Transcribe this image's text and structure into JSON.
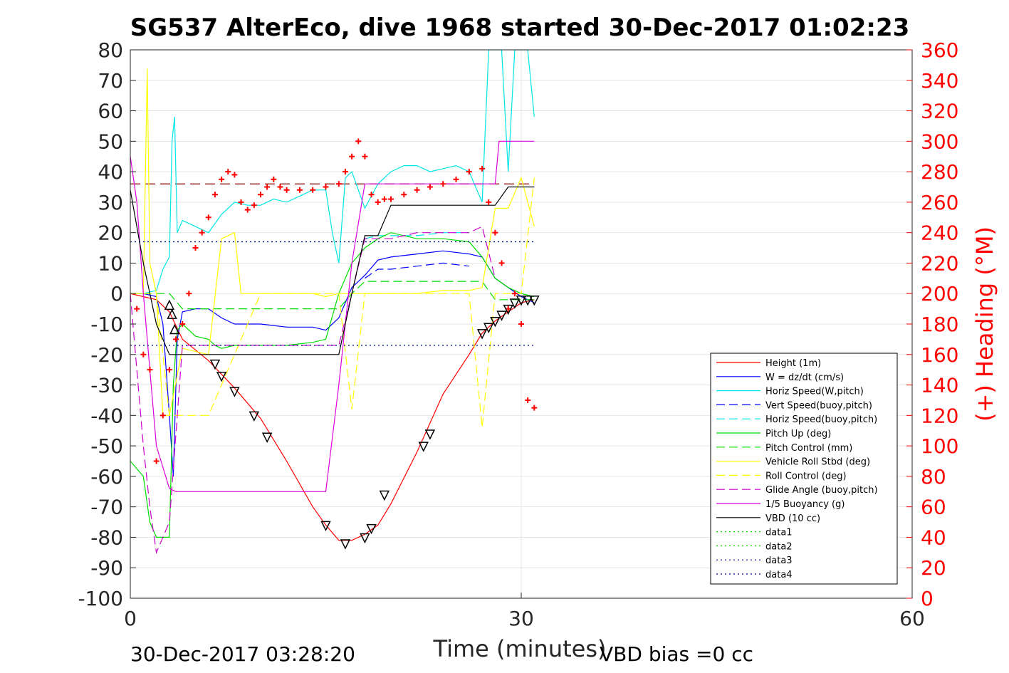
{
  "chart_data": {
    "type": "line",
    "title": "SG537 AlterEco, dive 1968 started 30-Dec-2017 01:02:23",
    "xlabel": "Time (minutes)",
    "ylabel": "",
    "ylabel_right": "(+) Heading (°M)",
    "xlim": [
      0,
      60
    ],
    "ylim": [
      -100,
      80
    ],
    "ylim_right": [
      0,
      360
    ],
    "xticks": [
      "0",
      "30",
      "60"
    ],
    "yticks": [
      "80",
      "70",
      "60",
      "50",
      "40",
      "30",
      "20",
      "10",
      "0",
      "-10",
      "-20",
      "-30",
      "-40",
      "-50",
      "-60",
      "-70",
      "-80",
      "-90",
      "-100"
    ],
    "yticks_right": [
      "360",
      "340",
      "320",
      "300",
      "280",
      "260",
      "240",
      "220",
      "200",
      "180",
      "160",
      "140",
      "120",
      "100",
      "80",
      "60",
      "40",
      "20",
      "0"
    ],
    "grid": true,
    "legend_position": "bottom-right",
    "footer_left": "30-Dec-2017 03:28:20",
    "footer_right": "VBD bias =0 cc",
    "series": [
      {
        "name": "Height (1m)",
        "color": "#ff0000",
        "style": "solid",
        "x": [
          0,
          1,
          2,
          3,
          4,
          6,
          8,
          10,
          12,
          14,
          15,
          16,
          17,
          18,
          19,
          20,
          22,
          24,
          26,
          27,
          28,
          29,
          30,
          31
        ],
        "y": [
          0,
          -1,
          -2,
          -6,
          -15,
          -22,
          -31,
          -41,
          -55,
          -70,
          -76,
          -81,
          -81,
          -79,
          -76,
          -69,
          -52,
          -33,
          -20,
          -13,
          -9,
          -6,
          -3,
          -2
        ]
      },
      {
        "name": "W = dz/dt (cm/s)",
        "color": "#0000ff",
        "style": "solid",
        "x": [
          0,
          1,
          2,
          2.5,
          3,
          3.3,
          3.6,
          4,
          5,
          6,
          7,
          8,
          10,
          12,
          14,
          15,
          16,
          17,
          18,
          19,
          20,
          22,
          24,
          26,
          27,
          28,
          29,
          30,
          31
        ],
        "y": [
          0,
          0,
          -1,
          -10,
          -40,
          -60,
          -15,
          -6,
          -5,
          -5,
          -8,
          -10,
          -10,
          -11,
          -11,
          -12,
          -8,
          2,
          6,
          11,
          12,
          13,
          14,
          13,
          12,
          5,
          2,
          -1,
          -3
        ]
      },
      {
        "name": "Horiz Speed(W,pitch)",
        "color": "#00e5e5",
        "style": "solid",
        "x": [
          0,
          1,
          2,
          2.5,
          3,
          3.2,
          3.4,
          3.6,
          4,
          5,
          6,
          7,
          8,
          9,
          10,
          11,
          12,
          13,
          14,
          15,
          15.5,
          16,
          16.5,
          17,
          18,
          19,
          20,
          21,
          22,
          23,
          24,
          25,
          26,
          27,
          27.5,
          28,
          28.5,
          29,
          29.5,
          30,
          30.5,
          31
        ],
        "y": [
          0,
          0,
          1,
          8,
          12,
          50,
          58,
          20,
          24,
          22,
          20,
          26,
          30,
          29,
          29,
          31,
          30,
          32,
          34,
          34,
          20,
          10,
          38,
          40,
          28,
          36,
          40,
          42,
          42,
          40,
          41,
          42,
          40,
          30,
          80,
          80,
          80,
          40,
          80,
          80,
          80,
          58
        ]
      },
      {
        "name": "Vert Speed(buoy,pitch)",
        "color": "#0000ff",
        "style": "dash",
        "x": [
          18,
          19,
          20,
          22,
          24,
          26
        ],
        "y": [
          5,
          8,
          8,
          9,
          10,
          9
        ]
      },
      {
        "name": "Horiz Speed(buoy,pitch)",
        "color": "#00e5e5",
        "style": "dash",
        "x": [
          18,
          19,
          20,
          22,
          24,
          26
        ],
        "y": [
          18,
          19,
          19,
          19,
          20,
          20
        ]
      },
      {
        "name": "Pitch Up (deg)",
        "color": "#00dd00",
        "style": "solid",
        "x": [
          0,
          1,
          1.5,
          2,
          2.5,
          3,
          3.3,
          3.6,
          4,
          5,
          6,
          6.5,
          7,
          8,
          10,
          12,
          14,
          15,
          16,
          17,
          18,
          19,
          20,
          22,
          24,
          26,
          27,
          28,
          29,
          30,
          31
        ],
        "y": [
          -55,
          -60,
          -75,
          -80,
          -80,
          -80,
          -30,
          -12,
          -10,
          -14,
          -15,
          -17,
          -18,
          -17,
          -17,
          -17,
          -16,
          -15,
          0,
          10,
          15,
          18,
          20,
          18,
          18,
          17,
          12,
          5,
          2,
          0,
          -1
        ]
      },
      {
        "name": "Pitch Control (mm)",
        "color": "#00dd00",
        "style": "dash",
        "x": [
          0,
          3,
          4,
          16,
          17,
          18,
          27,
          28,
          31
        ],
        "y": [
          0,
          0,
          -5,
          -5,
          0,
          4,
          4,
          -2,
          -2
        ]
      },
      {
        "name": "Vehicle Roll Stbd (deg)",
        "color": "#ffff00",
        "style": "solid",
        "x": [
          0,
          1,
          1.3,
          1.5,
          2,
          2.5,
          3,
          4,
          6,
          7,
          8,
          8.5,
          9,
          10,
          12,
          14,
          15,
          16,
          18,
          20,
          22,
          24,
          26,
          27,
          28,
          29,
          30,
          31
        ],
        "y": [
          0,
          0,
          74,
          10,
          0,
          -40,
          -40,
          -18,
          -20,
          18,
          20,
          0,
          0,
          0,
          0,
          0,
          -1,
          0,
          0,
          0,
          0,
          1,
          1,
          2,
          28,
          28,
          38,
          22
        ]
      },
      {
        "name": "Roll Control (deg)",
        "color": "#ffff00",
        "style": "dash",
        "x": [
          0,
          2,
          3,
          4,
          6,
          10,
          16,
          17,
          18,
          19,
          26,
          27,
          28,
          30,
          31
        ],
        "y": [
          0,
          0,
          -40,
          -40,
          -40,
          0,
          0,
          -38,
          0,
          0,
          0,
          -44,
          0,
          0,
          38
        ]
      },
      {
        "name": "Glide Angle (buoy,pitch)",
        "color": "#cc00cc",
        "style": "dash",
        "x": [
          0,
          1,
          1.5,
          2,
          2.5,
          3,
          4,
          6,
          10,
          14,
          16,
          17,
          18,
          20,
          22,
          24,
          26,
          27,
          28
        ],
        "y": [
          0,
          -50,
          -70,
          -85,
          -80,
          -75,
          -17,
          -17,
          -17,
          -17,
          -17,
          0,
          18,
          18,
          20,
          20,
          20,
          22,
          5
        ]
      },
      {
        "name": "1/5 Buoyancy (g)",
        "color": "#dd00dd",
        "style": "solid",
        "x": [
          0,
          0.5,
          1,
          2,
          3,
          3.5,
          5,
          10,
          15,
          16,
          17,
          18,
          19,
          20,
          24,
          28,
          28.3,
          29,
          31
        ],
        "y": [
          45,
          30,
          0,
          -50,
          -64,
          -65,
          -65,
          -65,
          -65,
          -30,
          10,
          36,
          36,
          36,
          36,
          36,
          50,
          50,
          50
        ]
      },
      {
        "name": "VBD (10 cc)",
        "color": "#000000",
        "style": "solid",
        "x": [
          0,
          1,
          2,
          3,
          16,
          17,
          18,
          19,
          20,
          28,
          29,
          31
        ],
        "y": [
          34,
          10,
          -10,
          -20,
          -20,
          0,
          19,
          19,
          29,
          29,
          35,
          35
        ]
      },
      {
        "name": "data1",
        "color": "#00dd00",
        "style": "dot",
        "x": [
          0,
          31
        ],
        "y": [
          17,
          17
        ]
      },
      {
        "name": "data2",
        "color": "#00dd00",
        "style": "dot",
        "x": [
          0,
          31
        ],
        "y": [
          -17,
          -17
        ]
      },
      {
        "name": "data3",
        "color": "#00008b",
        "style": "dot",
        "x": [
          0,
          31
        ],
        "y": [
          17,
          17
        ]
      },
      {
        "name": "data4",
        "color": "#00008b",
        "style": "dot",
        "x": [
          0,
          31
        ],
        "y": [
          -17,
          -17
        ]
      }
    ],
    "heading_reference": {
      "color": "#8b0000",
      "style": "dash",
      "y_right": 272,
      "x": [
        0,
        31
      ]
    },
    "heading_points": {
      "color": "#ff0000",
      "marker": "+",
      "x": [
        0.5,
        1,
        1.5,
        2,
        2.5,
        3,
        3.5,
        4,
        4.5,
        5,
        5.5,
        6,
        6.5,
        7,
        7.5,
        8,
        8.5,
        9,
        9.5,
        10,
        10.5,
        11,
        11.5,
        12,
        13,
        14,
        15,
        16,
        16.5,
        17,
        17.5,
        18,
        18.5,
        19,
        19.5,
        20,
        21,
        22,
        23,
        24,
        25,
        26,
        27,
        27.5,
        28,
        28.5,
        29,
        29.5,
        30,
        30.5,
        31
      ],
      "y": [
        190,
        160,
        150,
        90,
        120,
        150,
        170,
        180,
        200,
        230,
        240,
        250,
        265,
        275,
        280,
        278,
        260,
        255,
        258,
        265,
        270,
        275,
        270,
        268,
        268,
        268,
        270,
        272,
        280,
        290,
        300,
        290,
        265,
        260,
        262,
        262,
        265,
        268,
        270,
        272,
        275,
        280,
        282,
        260,
        240,
        220,
        190,
        200,
        180,
        130,
        125
      ]
    },
    "depth_markers": {
      "color": "#000000",
      "x": [
        3,
        3.2,
        3.4,
        6.5,
        7,
        8,
        9.5,
        10.5,
        15,
        16.5,
        18,
        18.5,
        19.5,
        22.5,
        23,
        27,
        27.5,
        28,
        28.5,
        29,
        29.5,
        30,
        30.5,
        31
      ],
      "y": [
        -4,
        -7,
        -12,
        -23,
        -27,
        -32,
        -40,
        -47,
        -76,
        -82,
        -80,
        -77,
        -66,
        -50,
        -46,
        -13,
        -11,
        -9,
        -7,
        -5,
        -3,
        -2,
        -2,
        -2
      ]
    }
  }
}
